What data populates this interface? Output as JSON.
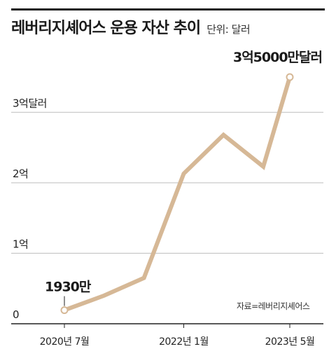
{
  "header": {
    "title": "레버리지셰어스 운용 자산 추이",
    "unit_label": "단위: 달러"
  },
  "source": "자료=레버리지셰어스",
  "colors": {
    "line": "#d6b896",
    "grid": "#bdbdbd",
    "axis": "#222222",
    "text": "#222222"
  },
  "chart_data": {
    "type": "line",
    "title": "레버리지셰어스 운용 자산 추이",
    "xlabel": "",
    "ylabel": "",
    "unit": "달러",
    "ylim": [
      0,
      350000000
    ],
    "y_ticks": [
      {
        "value": 0,
        "label": "0"
      },
      {
        "value": 100000000,
        "label": "1억"
      },
      {
        "value": 200000000,
        "label": "2억"
      },
      {
        "value": 300000000,
        "label": "3억달러"
      }
    ],
    "x_ticks": [
      {
        "x": 0,
        "label": "2020년 7월"
      },
      {
        "x": 18,
        "label": "2022년 1월"
      },
      {
        "x": 34,
        "label": "2023년 5월"
      }
    ],
    "xlim": [
      0,
      34
    ],
    "grid": true,
    "series": [
      {
        "x": [
          0,
          6,
          12,
          18,
          24,
          30,
          34
        ],
        "values": [
          19300000,
          40000000,
          65000000,
          213000000,
          268000000,
          223000000,
          350000000
        ]
      }
    ],
    "annotations": [
      {
        "point_index": 0,
        "label": "1930만"
      },
      {
        "point_index": 6,
        "label": "3억5000만달러"
      }
    ]
  }
}
